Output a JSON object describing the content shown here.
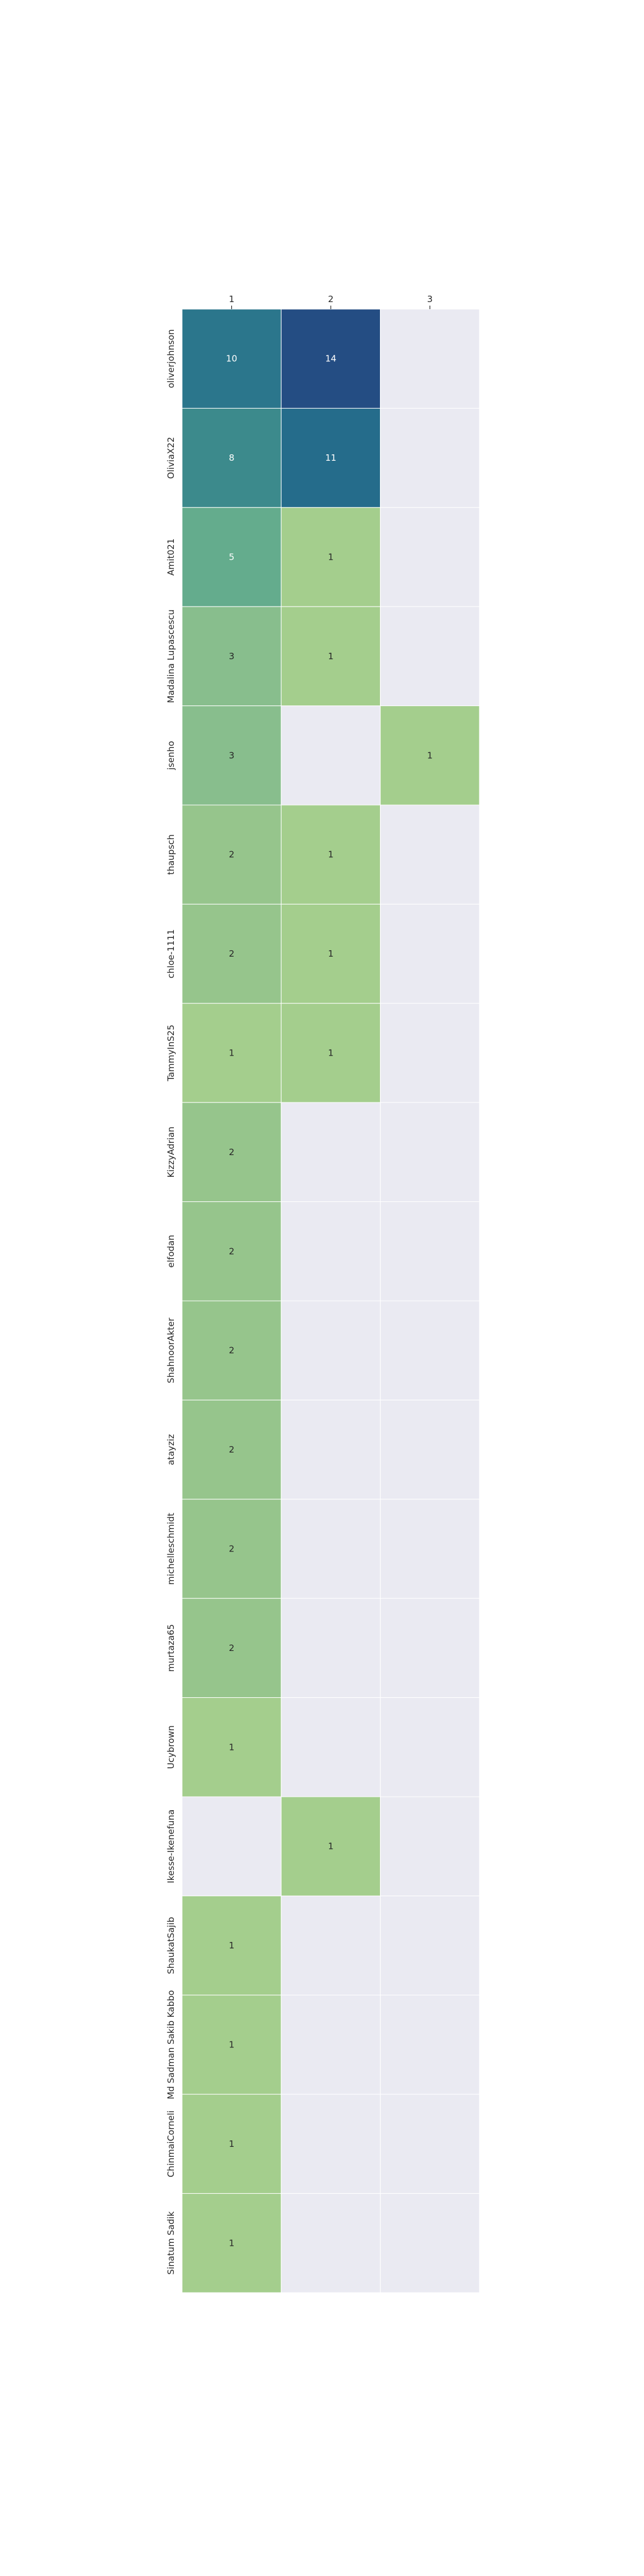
{
  "chart_data": {
    "type": "heatmap",
    "title": "",
    "xlabel": "",
    "ylabel": "",
    "columns": [
      "1",
      "2",
      "3"
    ],
    "rows": [
      "oliverjohnson",
      "OliviaX22",
      "Amit021",
      "Madalina Lupascescu",
      "jsenho",
      "thaupsch",
      "chloe-1111",
      "TammyInS25",
      "KizzyAdrian",
      "elfodan",
      "ShahnoorAkter",
      "atayziz",
      "michelleschmidt",
      "murtaza65",
      "Ucybrown",
      "Ikesse-Ikenefuna",
      "ShaukatSajib",
      "Md Sadman Sakib Kabbo",
      "ChinmaiCorneli",
      "Sinatum Sadik"
    ],
    "values": [
      [
        10,
        14,
        null
      ],
      [
        8,
        11,
        null
      ],
      [
        5,
        1,
        null
      ],
      [
        3,
        1,
        null
      ],
      [
        3,
        null,
        1
      ],
      [
        2,
        1,
        null
      ],
      [
        2,
        1,
        null
      ],
      [
        1,
        1,
        null
      ],
      [
        2,
        null,
        null
      ],
      [
        2,
        null,
        null
      ],
      [
        2,
        null,
        null
      ],
      [
        2,
        null,
        null
      ],
      [
        2,
        null,
        null
      ],
      [
        2,
        null,
        null
      ],
      [
        1,
        null,
        null
      ],
      [
        null,
        1,
        null
      ],
      [
        1,
        null,
        null
      ],
      [
        1,
        null,
        null
      ],
      [
        1,
        null,
        null
      ],
      [
        1,
        null,
        null
      ]
    ],
    "colormap": "crest",
    "vmin": 1,
    "vmax": 14,
    "empty_color": "#eaeaf2",
    "grid_line_color": "#ffffff"
  }
}
